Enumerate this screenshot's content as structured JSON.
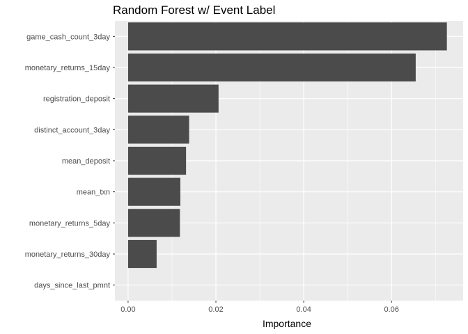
{
  "chart_data": {
    "type": "bar",
    "orientation": "horizontal",
    "title": "Random Forest w/ Event Label",
    "xlabel": "Importance",
    "ylabel": "",
    "categories": [
      "game_cash_count_3day",
      "monetary_returns_15day",
      "registration_deposit",
      "distinct_account_3day",
      "mean_deposit",
      "mean_txn",
      "monetary_returns_5day",
      "monetary_returns_30day",
      "days_since_last_pmnt"
    ],
    "values": [
      0.0726,
      0.0655,
      0.0206,
      0.0139,
      0.0132,
      0.0119,
      0.0118,
      0.0065,
      0.0
    ],
    "xlim": [
      -0.003,
      0.0763
    ],
    "xticks": [
      0.0,
      0.02,
      0.04,
      0.06
    ],
    "xtick_labels": [
      "0.00",
      "0.02",
      "0.04",
      "0.06"
    ],
    "grid": true,
    "colors": {
      "panel": "#ebebeb",
      "grid_major": "#ffffff",
      "bar": "#4b4b4b"
    }
  }
}
